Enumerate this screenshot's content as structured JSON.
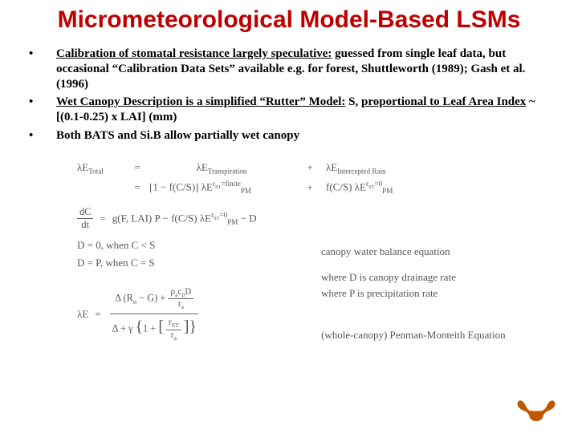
{
  "title": {
    "text": "Micrometeorological Model-Based LSMs",
    "fontsize": 30,
    "color": "#c00000"
  },
  "bullets": {
    "fontsize": 15,
    "items": [
      {
        "segments": [
          {
            "t": "Calibration of stomatal resistance largely speculative:",
            "u": true
          },
          {
            "t": " guessed from single leaf data, but occasional “Calibration Data Sets” available e.g. for forest, Shuttleworth (1989); Gash et al. (1996)"
          }
        ]
      },
      {
        "segments": [
          {
            "t": "Wet Canopy Description is a simplified “Rutter” Model:",
            "u": true
          },
          {
            "t": " S, "
          },
          {
            "t": "proportional to Leaf Area Index",
            "u": true
          },
          {
            "t": " ~[(0.1-0.25) x LAI] (mm)"
          }
        ]
      },
      {
        "segments": [
          {
            "t": "Both BATS and Si.B allow partially wet canopy"
          }
        ]
      }
    ]
  },
  "equations": {
    "fontsize": 13,
    "color": "#555555",
    "row1": {
      "left": "λE",
      "left_sub": "Total",
      "mid": "λE",
      "mid_sub": "Transpiration",
      "right": "λE",
      "right_sub": "Intercepted Rain"
    },
    "row2": {
      "mid_prefix": "[1 − f(C/S)] λE",
      "mid_sup": "r",
      "mid_sup_sub": "ST",
      "mid_sup_tail": "=finite",
      "mid_sub": "PM",
      "right_prefix": "f(C/S) λE",
      "right_sup": "r",
      "right_sup_sub": "ST",
      "right_sup_tail": "=0",
      "right_sub": "PM"
    },
    "row3": {
      "lhs_num": "dC",
      "lhs_den": "dt",
      "rhs": "g(F, LAI) P − f(C/S) λE",
      "rhs_sup": "r",
      "rhs_sup_sub": "ST",
      "rhs_sup_tail": "=0",
      "rhs_sub": "PM",
      "rhs_tail": " − D",
      "desc": "canopy water balance equation"
    },
    "row4": {
      "lhs": "D = 0, when  C < S",
      "desc": "where D is canopy drainage rate"
    },
    "row5": {
      "lhs": "D = P, when  C = S",
      "desc": "where P is precipitation rate"
    },
    "row6": {
      "lhs": "λE",
      "num1": "Δ (R",
      "num1_sub": "n",
      "num1_tail": " − G) + ",
      "num2_num": "ρ",
      "num2a_sub": "a",
      "num2b": "c",
      "num2b_sub": "p",
      "num2c": "D",
      "num2_den": "r",
      "num2_den_sub": "a",
      "den1": "Δ + γ ",
      "den_inner_num": "r",
      "den_inner_num_sub": "ST",
      "den_inner_den": "r",
      "den_inner_den_sub": "a",
      "desc": "(whole-canopy) Penman-Monteith Equation"
    }
  },
  "logo": {
    "color": "#bf5700",
    "width": 52,
    "height": 30
  }
}
